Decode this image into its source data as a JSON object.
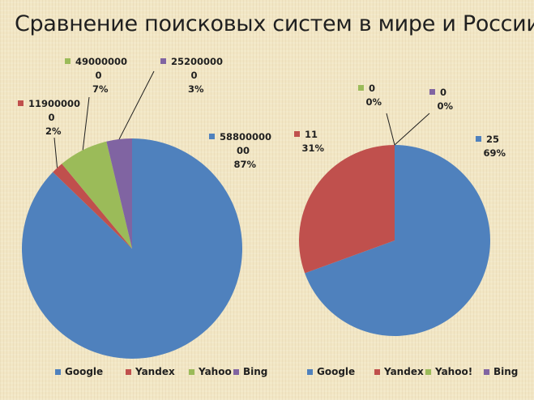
{
  "title": "Сравнение поисковых систем в мире и России",
  "colors": {
    "Google": "#4f81bd",
    "Yandex": "#c0504d",
    "Yahoo": "#9bbb59",
    "Bing": "#8064a2",
    "leader": "#1f1f1f"
  },
  "chart_data": [
    {
      "type": "pie",
      "legend_position": "bottom",
      "legend": [
        "Google",
        "Yandex",
        "Yahoo",
        "Bing"
      ],
      "slices": [
        {
          "name": "Google",
          "value": 5880000000,
          "value_lines": [
            "58800000",
            "00"
          ],
          "percent": "87%"
        },
        {
          "name": "Yandex",
          "value": 119000000,
          "value_lines": [
            "11900000",
            "0"
          ],
          "percent": "2%"
        },
        {
          "name": "Yahoo",
          "value": 490000000,
          "value_lines": [
            "49000000",
            "0"
          ],
          "percent": "7%"
        },
        {
          "name": "Bing",
          "value": 252000000,
          "value_lines": [
            "25200000",
            "0"
          ],
          "percent": "3%"
        }
      ]
    },
    {
      "type": "pie",
      "legend_position": "bottom",
      "legend": [
        "Google",
        "Yandex",
        "Yahoo!",
        "Bing"
      ],
      "slices": [
        {
          "name": "Google",
          "value": 25,
          "value_lines": [
            "25"
          ],
          "percent": "69%"
        },
        {
          "name": "Yandex",
          "value": 11,
          "value_lines": [
            "11"
          ],
          "percent": "31%"
        },
        {
          "name": "Yahoo!",
          "value": 0,
          "value_lines": [
            "0"
          ],
          "percent": "0%"
        },
        {
          "name": "Bing",
          "value": 0,
          "value_lines": [
            "0"
          ],
          "percent": "0%"
        }
      ]
    }
  ]
}
